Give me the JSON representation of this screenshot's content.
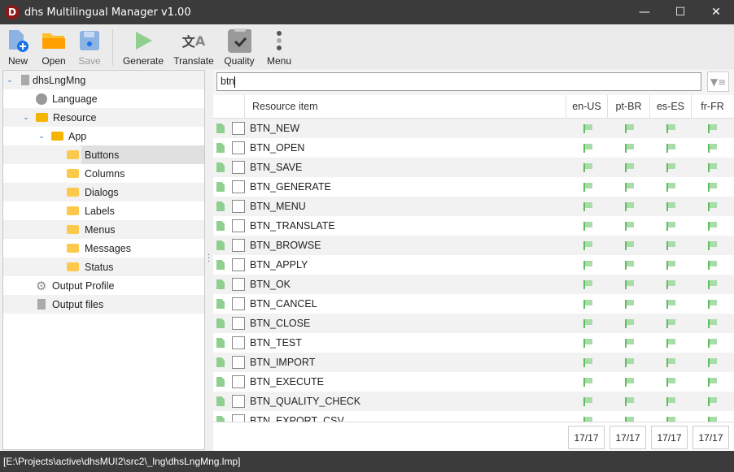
{
  "window": {
    "title": "dhs Multilingual Manager v1.00",
    "logo": "D"
  },
  "toolbar": {
    "new": "New",
    "open": "Open",
    "save": "Save",
    "generate": "Generate",
    "translate": "Translate",
    "quality": "Quality",
    "menu": "Menu"
  },
  "tree": {
    "root": "dhsLngMng",
    "language": "Language",
    "resource": "Resource",
    "app": "App",
    "folders": [
      "Buttons",
      "Columns",
      "Dialogs",
      "Labels",
      "Menus",
      "Messages",
      "Status"
    ],
    "output_profile": "Output Profile",
    "output_files": "Output files",
    "selected": "Buttons"
  },
  "search": {
    "value": "btn"
  },
  "grid": {
    "columns": {
      "item": "Resource item",
      "langs": [
        "en-US",
        "pt-BR",
        "es-ES",
        "fr-FR"
      ]
    },
    "rows": [
      "BTN_NEW",
      "BTN_OPEN",
      "BTN_SAVE",
      "BTN_GENERATE",
      "BTN_MENU",
      "BTN_TRANSLATE",
      "BTN_BROWSE",
      "BTN_APPLY",
      "BTN_OK",
      "BTN_CANCEL",
      "BTN_CLOSE",
      "BTN_TEST",
      "BTN_IMPORT",
      "BTN_EXECUTE",
      "BTN_QUALITY_CHECK",
      "BTN_EXPORT_CSV"
    ],
    "counts": [
      "17/17",
      "17/17",
      "17/17",
      "17/17"
    ]
  },
  "status": {
    "path": "[E:\\Projects\\active\\dhsMUI2\\src2\\_lng\\dhsLngMng.lmp]"
  }
}
